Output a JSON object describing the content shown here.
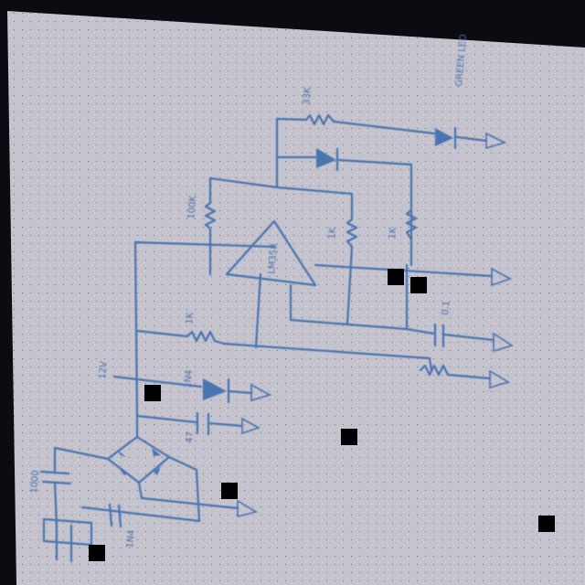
{
  "photo": {
    "paper_color": "#c4c2cd",
    "ink_color": "#4a74b0",
    "background_color": "#0b0b10"
  },
  "labels": {
    "r_top": "33K",
    "green_led": "GREEN LED",
    "r_left": "100K",
    "r_mid": "1K",
    "r_right": "1K",
    "op_amp": "LM358",
    "r_feedback": "1K",
    "cap_out": "0.1",
    "v_in": "12V",
    "cap_small": "47",
    "cap_left": "1000",
    "bridge": "1N4"
  },
  "occlusions": [
    {
      "name": "black-square-1"
    },
    {
      "name": "black-square-2"
    },
    {
      "name": "black-square-3"
    },
    {
      "name": "black-square-4"
    },
    {
      "name": "black-square-5"
    },
    {
      "name": "black-square-6"
    },
    {
      "name": "black-square-7"
    }
  ]
}
